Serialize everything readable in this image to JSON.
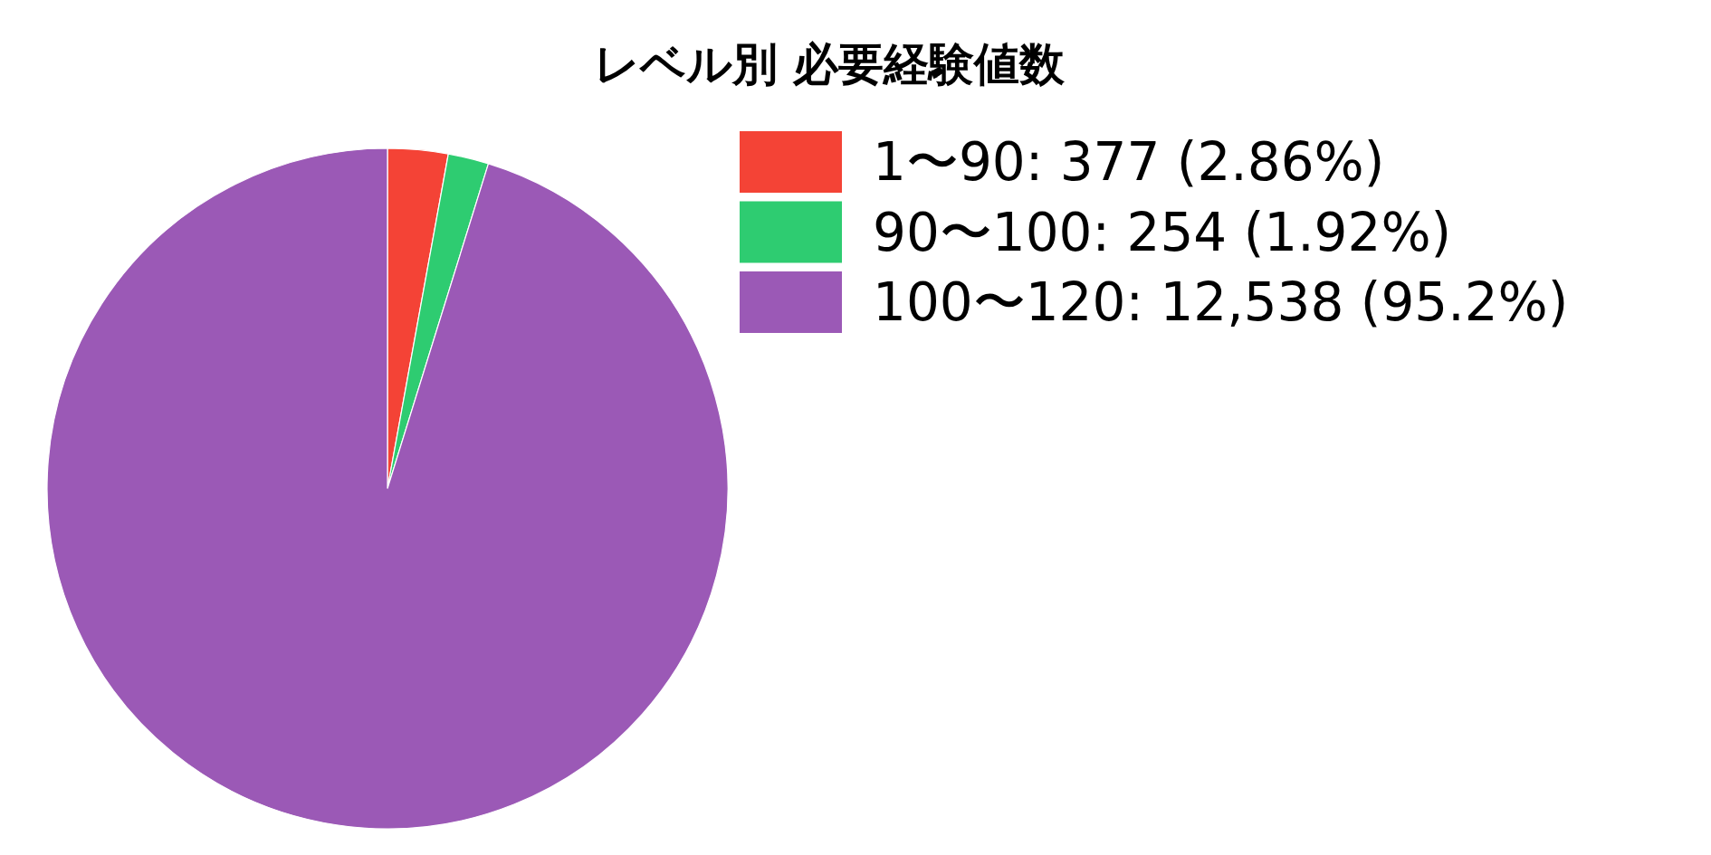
{
  "chart_data": {
    "type": "pie",
    "title": "レベル別 必要経験値数",
    "categories": [
      "1〜90: 377 (2.86%)",
      "90〜100: 254 (1.92%)",
      "100〜120: 12,538 (95.2%)"
    ],
    "values": [
      377,
      254,
      12538
    ],
    "colors": [
      "#f44336",
      "#2ecc71",
      "#9b59b6"
    ],
    "legend": "top right"
  }
}
